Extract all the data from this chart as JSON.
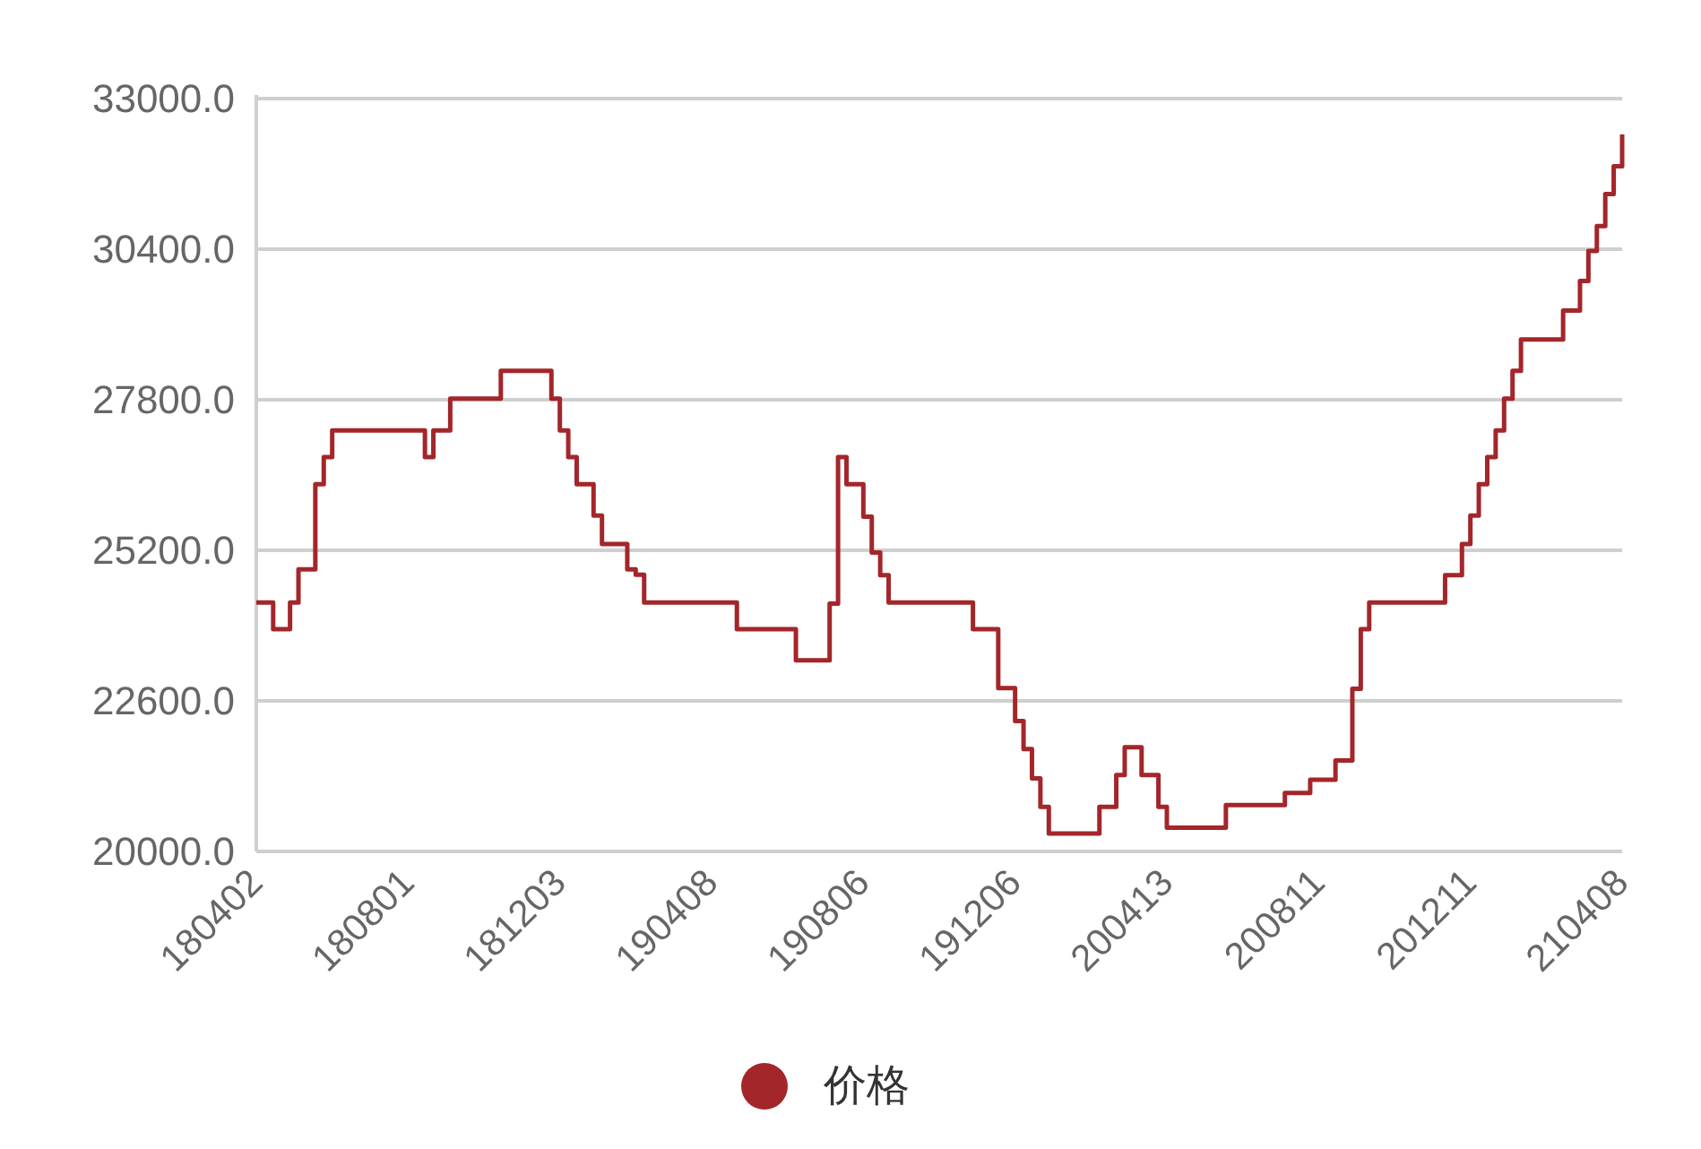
{
  "chart_data": {
    "type": "step",
    "categories": [
      "180402",
      null,
      null,
      null,
      null,
      null,
      null,
      null,
      null,
      null,
      null,
      null,
      null,
      null,
      null,
      null,
      null,
      null,
      "180801",
      null,
      null,
      null,
      null,
      null,
      null,
      null,
      null,
      null,
      null,
      null,
      null,
      null,
      null,
      null,
      null,
      null,
      "181203",
      null,
      null,
      null,
      null,
      null,
      null,
      null,
      null,
      null,
      null,
      null,
      null,
      null,
      null,
      null,
      null,
      null,
      "190408",
      null,
      null,
      null,
      null,
      null,
      null,
      null,
      null,
      null,
      null,
      null,
      null,
      null,
      null,
      null,
      null,
      null,
      "190806",
      null,
      null,
      null,
      null,
      null,
      null,
      null,
      null,
      null,
      null,
      null,
      null,
      null,
      null,
      null,
      null,
      null,
      "191206",
      null,
      null,
      null,
      null,
      null,
      null,
      null,
      null,
      null,
      null,
      null,
      null,
      null,
      null,
      null,
      null,
      null,
      "200413",
      null,
      null,
      null,
      null,
      null,
      null,
      null,
      null,
      null,
      null,
      null,
      null,
      null,
      null,
      null,
      null,
      null,
      "200811",
      null,
      null,
      null,
      null,
      null,
      null,
      null,
      null,
      null,
      null,
      null,
      null,
      null,
      null,
      null,
      null,
      null,
      "201211",
      null,
      null,
      null,
      null,
      null,
      null,
      null,
      null,
      null,
      null,
      null,
      null,
      null,
      null,
      null,
      null,
      null,
      "210408"
    ],
    "series": [
      {
        "name": "价格",
        "color": "#a3262a",
        "values": [
          24300,
          24300,
          23840,
          23840,
          24300,
          24870,
          24870,
          26340,
          26810,
          27270,
          27270,
          27270,
          27270,
          27270,
          27270,
          27270,
          27270,
          27270,
          27270,
          27270,
          26810,
          27270,
          27270,
          27820,
          27820,
          27820,
          27820,
          27820,
          27820,
          28300,
          28300,
          28300,
          28300,
          28300,
          28300,
          27820,
          27270,
          26810,
          26340,
          26340,
          25800,
          25310,
          25310,
          25310,
          24870,
          24780,
          24300,
          24300,
          24300,
          24300,
          24300,
          24300,
          24300,
          24300,
          24300,
          24300,
          24300,
          23840,
          23840,
          23840,
          23840,
          23840,
          23840,
          23840,
          23300,
          23300,
          23300,
          23300,
          24280,
          26810,
          26340,
          26340,
          25780,
          25160,
          24770,
          24300,
          24300,
          24300,
          24300,
          24300,
          24300,
          24300,
          24300,
          24300,
          24300,
          23840,
          23840,
          23840,
          22820,
          22820,
          22250,
          21770,
          21260,
          20770,
          20310,
          20310,
          20310,
          20310,
          20310,
          20310,
          20770,
          20770,
          21320,
          21800,
          21800,
          21320,
          21320,
          20770,
          20410,
          20410,
          20410,
          20410,
          20410,
          20410,
          20410,
          20800,
          20800,
          20800,
          20800,
          20800,
          20800,
          20800,
          21010,
          21010,
          21010,
          21240,
          21240,
          21240,
          21570,
          21570,
          22810,
          23840,
          24300,
          24300,
          24300,
          24300,
          24300,
          24300,
          24300,
          24300,
          24300,
          24770,
          24770,
          25310,
          25800,
          26340,
          26810,
          27270,
          27820,
          28300,
          28840,
          28840,
          28840,
          28840,
          28840,
          29340,
          29340,
          29850,
          30370,
          30800,
          31350,
          31830,
          32380
        ]
      }
    ],
    "ylim": [
      20000,
      33000
    ],
    "yticks": [
      {
        "value": 20000,
        "label": "20000.0"
      },
      {
        "value": 22600,
        "label": "22600.0"
      },
      {
        "value": 25200,
        "label": "25200.0"
      },
      {
        "value": 27800,
        "label": "27800.0"
      },
      {
        "value": 30400,
        "label": "30400.0"
      },
      {
        "value": 33000,
        "label": "33000.0"
      }
    ],
    "grid": "y",
    "legend": "bottom"
  }
}
